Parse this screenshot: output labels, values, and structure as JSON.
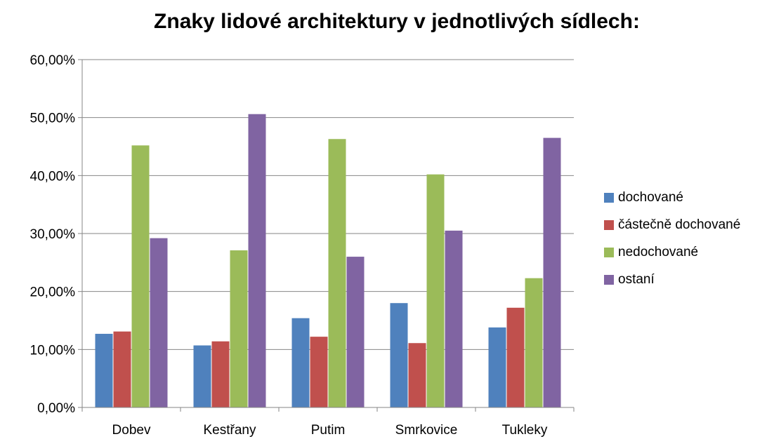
{
  "chart_data": {
    "type": "bar",
    "title": "Znaky lidové architektury v jednotlivých sídlech:",
    "categories": [
      "Dobev",
      "Kestřany",
      "Putim",
      "Smrkovice",
      "Tukleky"
    ],
    "series": [
      {
        "name": "dochované",
        "color": "#4F81BD",
        "values": [
          0.127,
          0.107,
          0.154,
          0.18,
          0.138
        ]
      },
      {
        "name": "částečně dochované",
        "color": "#C0504D",
        "values": [
          0.131,
          0.114,
          0.122,
          0.111,
          0.172
        ]
      },
      {
        "name": "nedochované",
        "color": "#9BBB59",
        "values": [
          0.452,
          0.271,
          0.463,
          0.402,
          0.223
        ]
      },
      {
        "name": "ostaní",
        "color": "#8064A2",
        "values": [
          0.292,
          0.506,
          0.26,
          0.305,
          0.465
        ]
      }
    ],
    "y_ticks": [
      "0,00%",
      "10,00%",
      "20,00%",
      "30,00%",
      "40,00%",
      "50,00%",
      "60,00%"
    ],
    "ylim": [
      0,
      0.6
    ],
    "grid": true,
    "legend_position": "right"
  }
}
